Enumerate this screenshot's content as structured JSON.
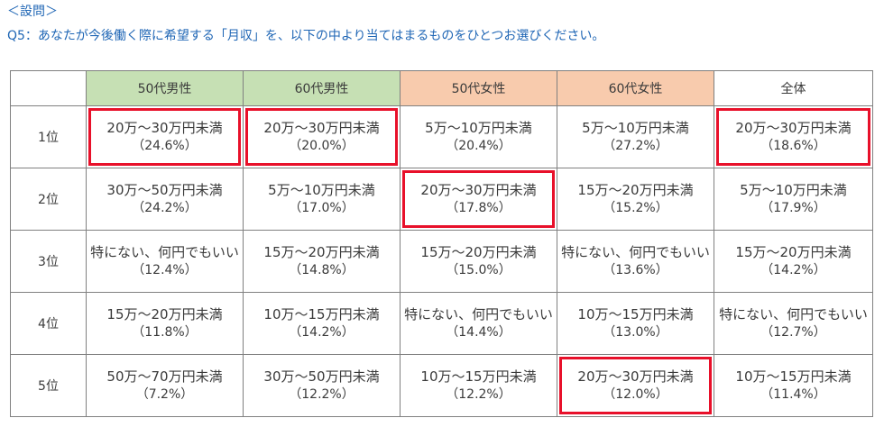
{
  "header": {
    "section_label": "＜設問＞",
    "question": "Q5：あなたが今後働く際に希望する「月収」を、以下の中より当てはまるものをひとつお選びください。"
  },
  "columns": [
    {
      "label": "50代男性",
      "color": "#c6e0b4"
    },
    {
      "label": "60代男性",
      "color": "#c6e0b4"
    },
    {
      "label": "50代女性",
      "color": "#f8cbad"
    },
    {
      "label": "60代女性",
      "color": "#f8cbad"
    },
    {
      "label": "全体",
      "color": "#ffffff"
    }
  ],
  "rows": [
    {
      "rank": "1位",
      "cells": [
        {
          "answer": "20万～30万円未満",
          "pct": "（24.6%）",
          "highlighted": true
        },
        {
          "answer": "20万～30万円未満",
          "pct": "（20.0%）",
          "highlighted": true
        },
        {
          "answer": "5万～10万円未満",
          "pct": "（20.4%）",
          "highlighted": false
        },
        {
          "answer": "5万～10万円未満",
          "pct": "（27.2%）",
          "highlighted": false
        },
        {
          "answer": "20万～30万円未満",
          "pct": "（18.6%）",
          "highlighted": true
        }
      ]
    },
    {
      "rank": "2位",
      "cells": [
        {
          "answer": "30万～50万円未満",
          "pct": "（24.2%）",
          "highlighted": false
        },
        {
          "answer": "5万～10万円未満",
          "pct": "（17.0%）",
          "highlighted": false
        },
        {
          "answer": "20万～30万円未満",
          "pct": "（17.8%）",
          "highlighted": true
        },
        {
          "answer": "15万～20万円未満",
          "pct": "（15.2%）",
          "highlighted": false
        },
        {
          "answer": "5万～10万円未満",
          "pct": "（17.9%）",
          "highlighted": false
        }
      ]
    },
    {
      "rank": "3位",
      "cells": [
        {
          "answer": "特にない、何円でもいい",
          "pct": "（12.4%）",
          "highlighted": false
        },
        {
          "answer": "15万～20万円未満",
          "pct": "（14.8%）",
          "highlighted": false
        },
        {
          "answer": "15万～20万円未満",
          "pct": "（15.0%）",
          "highlighted": false
        },
        {
          "answer": "特にない、何円でもいい",
          "pct": "（13.6%）",
          "highlighted": false
        },
        {
          "answer": "15万～20万円未満",
          "pct": "（14.2%）",
          "highlighted": false
        }
      ]
    },
    {
      "rank": "4位",
      "cells": [
        {
          "answer": "15万～20万円未満",
          "pct": "（11.8%）",
          "highlighted": false
        },
        {
          "answer": "10万～15万円未満",
          "pct": "（14.2%）",
          "highlighted": false
        },
        {
          "answer": "特にない、何円でもいい",
          "pct": "（14.4%）",
          "highlighted": false
        },
        {
          "answer": "10万～15万円未満",
          "pct": "（13.0%）",
          "highlighted": false
        },
        {
          "answer": "特にない、何円でもいい",
          "pct": "（12.7%）",
          "highlighted": false
        }
      ]
    },
    {
      "rank": "5位",
      "cells": [
        {
          "answer": "50万～70万円未満",
          "pct": "（7.2%）",
          "highlighted": false
        },
        {
          "answer": "30万～50万円未満",
          "pct": "（12.2%）",
          "highlighted": false
        },
        {
          "answer": "10万～15万円未満",
          "pct": "（12.2%）",
          "highlighted": false
        },
        {
          "answer": "20万～30万円未満",
          "pct": "（12.0%）",
          "highlighted": true
        },
        {
          "answer": "10万～15万円未満",
          "pct": "（11.4%）",
          "highlighted": false
        }
      ]
    }
  ],
  "highlight_color": "#e8102a",
  "question_color": "#1f66b5"
}
